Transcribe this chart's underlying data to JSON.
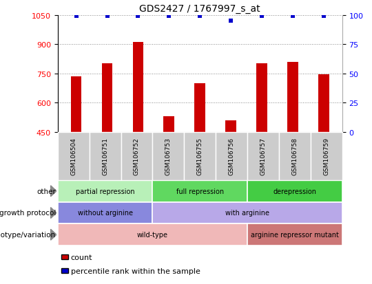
{
  "title": "GDS2427 / 1767997_s_at",
  "samples": [
    "GSM106504",
    "GSM106751",
    "GSM106752",
    "GSM106753",
    "GSM106755",
    "GSM106756",
    "GSM106757",
    "GSM106758",
    "GSM106759"
  ],
  "bar_values": [
    735,
    800,
    910,
    530,
    700,
    510,
    800,
    810,
    745
  ],
  "percentile_values": [
    99,
    99,
    99,
    99,
    99,
    95,
    99,
    99,
    99
  ],
  "ylim_left": [
    450,
    1050
  ],
  "ylim_right": [
    0,
    100
  ],
  "yticks_left": [
    450,
    600,
    750,
    900,
    1050
  ],
  "yticks_right": [
    0,
    25,
    50,
    75,
    100
  ],
  "bar_color": "#cc0000",
  "dot_color": "#0000cc",
  "grid_color": "#888888",
  "annotation_rows": [
    {
      "label": "other",
      "segments": [
        {
          "text": "partial repression",
          "start": 0,
          "end": 3,
          "color": "#b8f0b8"
        },
        {
          "text": "full repression",
          "start": 3,
          "end": 6,
          "color": "#60d860"
        },
        {
          "text": "derepression",
          "start": 6,
          "end": 9,
          "color": "#44cc44"
        }
      ]
    },
    {
      "label": "growth protocol",
      "segments": [
        {
          "text": "without arginine",
          "start": 0,
          "end": 3,
          "color": "#8888dd"
        },
        {
          "text": "with arginine",
          "start": 3,
          "end": 9,
          "color": "#b8a8e8"
        }
      ]
    },
    {
      "label": "genotype/variation",
      "segments": [
        {
          "text": "wild-type",
          "start": 0,
          "end": 6,
          "color": "#f0b8b8"
        },
        {
          "text": "arginine repressor mutant",
          "start": 6,
          "end": 9,
          "color": "#cc7777"
        }
      ]
    }
  ],
  "legend_items": [
    {
      "color": "#cc0000",
      "label": "count"
    },
    {
      "color": "#0000cc",
      "label": "percentile rank within the sample"
    }
  ],
  "xtick_bg": "#cccccc",
  "fig_width": 5.4,
  "fig_height": 4.14,
  "dpi": 100
}
